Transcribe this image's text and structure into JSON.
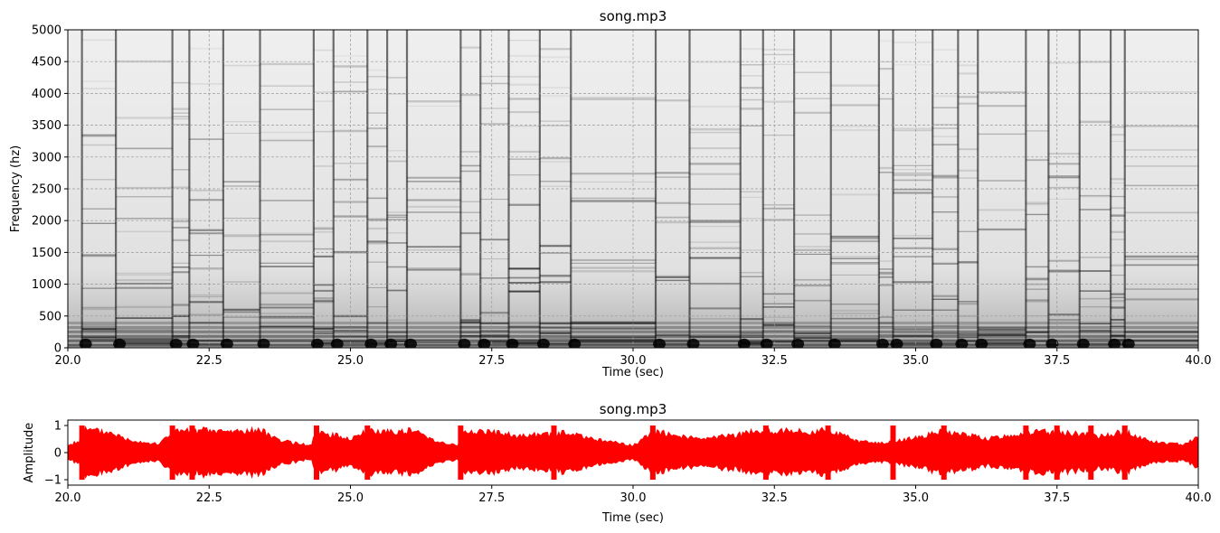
{
  "chart_data": [
    {
      "type": "heatmap",
      "title": "song.mp3",
      "xlabel": "Time (sec)",
      "ylabel": "Frequency (hz)",
      "xlim": [
        20.0,
        40.0
      ],
      "ylim": [
        0,
        5000
      ],
      "grid": true,
      "colormap": "grayscale (white = low, black = high)",
      "x_ticks": [
        "20.0",
        "22.5",
        "25.0",
        "27.5",
        "30.0",
        "32.5",
        "35.0",
        "37.5",
        "40.0"
      ],
      "y_ticks": [
        "0",
        "500",
        "1000",
        "1500",
        "2000",
        "2500",
        "3000",
        "3500",
        "4000",
        "4500",
        "5000"
      ],
      "onsets": [
        20.25,
        20.85,
        21.85,
        22.15,
        22.75,
        23.4,
        24.35,
        24.7,
        25.3,
        25.65,
        26.0,
        26.95,
        27.3,
        27.8,
        28.35,
        28.9,
        30.4,
        31.0,
        31.9,
        32.3,
        32.85,
        33.5,
        34.35,
        34.6,
        35.3,
        35.75,
        36.1,
        36.95,
        37.35,
        37.9,
        38.45,
        38.7
      ]
    },
    {
      "type": "line",
      "title": "song.mp3",
      "xlabel": "Time (sec)",
      "ylabel": "Amplitude",
      "xlim": [
        20.0,
        40.0
      ],
      "ylim": [
        -1.2,
        1.2
      ],
      "grid": false,
      "color": "#ff0000",
      "x_ticks": [
        "20.0",
        "22.5",
        "25.0",
        "27.5",
        "30.0",
        "32.5",
        "35.0",
        "37.5",
        "40.0"
      ],
      "y_ticks": [
        "1",
        "0",
        "−1"
      ],
      "envelope": [
        {
          "x": 20.0,
          "amp": 0.3
        },
        {
          "x": 20.2,
          "amp": 0.5
        },
        {
          "x": 20.25,
          "amp": 1.0
        },
        {
          "x": 20.8,
          "amp": 0.85
        },
        {
          "x": 21.0,
          "amp": 0.6
        },
        {
          "x": 21.6,
          "amp": 0.35
        },
        {
          "x": 21.85,
          "amp": 0.9
        },
        {
          "x": 22.4,
          "amp": 0.95
        },
        {
          "x": 22.75,
          "amp": 0.9
        },
        {
          "x": 23.4,
          "amp": 0.95
        },
        {
          "x": 23.8,
          "amp": 0.5
        },
        {
          "x": 24.3,
          "amp": 0.3
        },
        {
          "x": 24.4,
          "amp": 0.9
        },
        {
          "x": 25.0,
          "amp": 0.6
        },
        {
          "x": 25.3,
          "amp": 0.9
        },
        {
          "x": 26.1,
          "amp": 0.95
        },
        {
          "x": 26.6,
          "amp": 0.45
        },
        {
          "x": 26.9,
          "amp": 0.3
        },
        {
          "x": 27.0,
          "amp": 0.9
        },
        {
          "x": 27.4,
          "amp": 0.9
        },
        {
          "x": 28.0,
          "amp": 0.7
        },
        {
          "x": 28.8,
          "amp": 0.85
        },
        {
          "x": 29.4,
          "amp": 0.55
        },
        {
          "x": 30.0,
          "amp": 0.3
        },
        {
          "x": 30.35,
          "amp": 0.9
        },
        {
          "x": 30.7,
          "amp": 0.8
        },
        {
          "x": 31.2,
          "amp": 0.55
        },
        {
          "x": 31.9,
          "amp": 0.8
        },
        {
          "x": 32.3,
          "amp": 0.95
        },
        {
          "x": 32.9,
          "amp": 0.9
        },
        {
          "x": 33.5,
          "amp": 0.95
        },
        {
          "x": 34.0,
          "amp": 0.5
        },
        {
          "x": 34.4,
          "amp": 0.4
        },
        {
          "x": 34.9,
          "amp": 0.6
        },
        {
          "x": 35.5,
          "amp": 0.9
        },
        {
          "x": 36.3,
          "amp": 0.6
        },
        {
          "x": 36.95,
          "amp": 0.85
        },
        {
          "x": 37.6,
          "amp": 0.9
        },
        {
          "x": 38.2,
          "amp": 0.7
        },
        {
          "x": 38.7,
          "amp": 0.9
        },
        {
          "x": 39.2,
          "amp": 0.45
        },
        {
          "x": 39.7,
          "amp": 0.35
        },
        {
          "x": 40.0,
          "amp": 0.65
        }
      ],
      "bursts": [
        20.25,
        21.85,
        22.2,
        24.4,
        25.3,
        26.95,
        28.6,
        30.35,
        32.35,
        33.45,
        34.6,
        35.5,
        36.95,
        37.5,
        38.1,
        38.7
      ]
    }
  ]
}
